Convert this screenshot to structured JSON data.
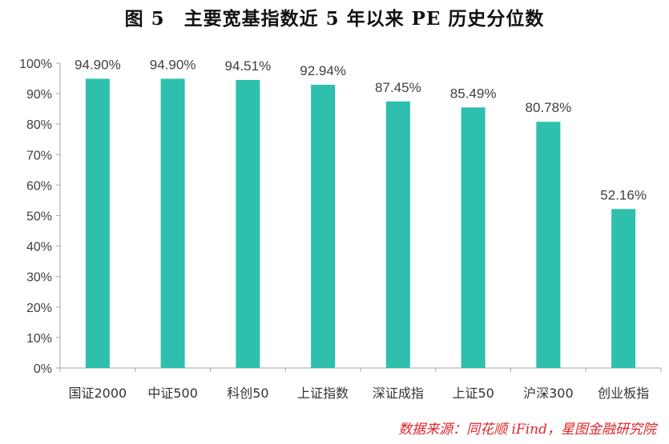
{
  "title": "图 5　主要宽基指数近 5 年以来 PE 历史分位数",
  "source": "数据来源：同花顺 iFind，星图金融研究院",
  "colors": {
    "bar": "#2ebfad",
    "axis": "#a6a6a6",
    "source": "#e0262b"
  },
  "chart_data": {
    "type": "bar",
    "categories": [
      "国证2000",
      "中证500",
      "科创50",
      "上证指数",
      "深证成指",
      "上证50",
      "沪深300",
      "创业板指"
    ],
    "values": [
      94.9,
      94.9,
      94.51,
      92.94,
      87.45,
      85.49,
      80.78,
      52.16
    ],
    "data_labels": [
      "94.90%",
      "94.90%",
      "94.51%",
      "92.94%",
      "87.45%",
      "85.49%",
      "80.78%",
      "52.16%"
    ],
    "title": "主要宽基指数近 5 年以来 PE 历史分位数",
    "xlabel": "",
    "ylabel": "",
    "ylim": [
      0,
      100
    ],
    "yticks": [
      "0%",
      "10%",
      "20%",
      "30%",
      "40%",
      "50%",
      "60%",
      "70%",
      "80%",
      "90%",
      "100%"
    ],
    "grid": false,
    "legend": "none"
  }
}
